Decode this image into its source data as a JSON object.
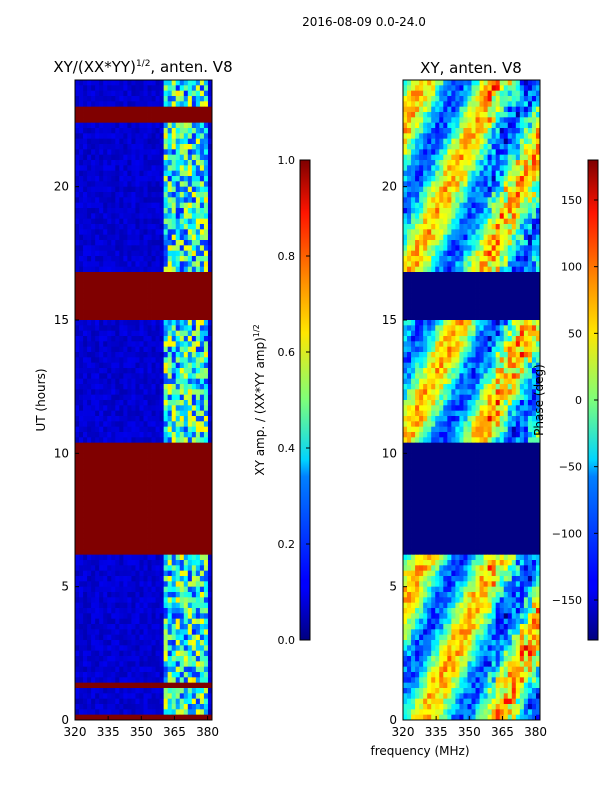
{
  "suptitle": "2016-08-09 0.0-24.0",
  "shared_xlabel": "frequency (MHz)",
  "chart_data": [
    {
      "type": "heatmap",
      "title_main": "XY/(XX*YY)",
      "title_exp": "1/2",
      "title_rest": ", anten. V8",
      "ylabel": "UT (hours)",
      "x_range": [
        320,
        382
      ],
      "y_range": [
        0,
        24
      ],
      "xticks": [
        "320",
        "335",
        "350",
        "365",
        "380"
      ],
      "xtick_values": [
        320,
        335,
        350,
        365,
        380
      ],
      "yticks": [
        "0",
        "5",
        "10",
        "15",
        "20"
      ],
      "ytick_values": [
        0,
        5,
        10,
        15,
        20
      ],
      "flagged_blocks_hours": [
        [
          6.2,
          10.4
        ],
        [
          15.0,
          16.9
        ],
        [
          22.4,
          23.1
        ],
        [
          0.0,
          0.3
        ],
        [
          1.3,
          1.5
        ]
      ],
      "colorbar": {
        "label_main": "XY amp. / (XX*YY amp)",
        "label_exp": "1/2",
        "range": [
          0.0,
          1.0
        ],
        "ticks": [
          "0.0",
          "0.2",
          "0.4",
          "0.6",
          "0.8",
          "1.0"
        ],
        "tick_values": [
          0.0,
          0.2,
          0.4,
          0.6,
          0.8,
          1.0
        ],
        "colormap": "jet"
      }
    },
    {
      "type": "heatmap",
      "title": "XY, anten. V8",
      "x_range": [
        320,
        382
      ],
      "y_range": [
        0,
        24
      ],
      "xticks": [
        "320",
        "335",
        "350",
        "365",
        "380"
      ],
      "xtick_values": [
        320,
        335,
        350,
        365,
        380
      ],
      "yticks": [
        "0",
        "5",
        "10",
        "15",
        "20"
      ],
      "ytick_values": [
        0,
        5,
        10,
        15,
        20
      ],
      "flagged_blocks_hours": [
        [
          6.2,
          10.4
        ],
        [
          15.0,
          16.9
        ]
      ],
      "colorbar": {
        "label": "Phase (deg)",
        "range": [
          -180,
          180
        ],
        "ticks": [
          "−150",
          "−100",
          "−50",
          "0",
          "50",
          "100",
          "150"
        ],
        "tick_values": [
          -150,
          -100,
          -50,
          0,
          50,
          100,
          150
        ],
        "colormap": "jet"
      }
    }
  ]
}
